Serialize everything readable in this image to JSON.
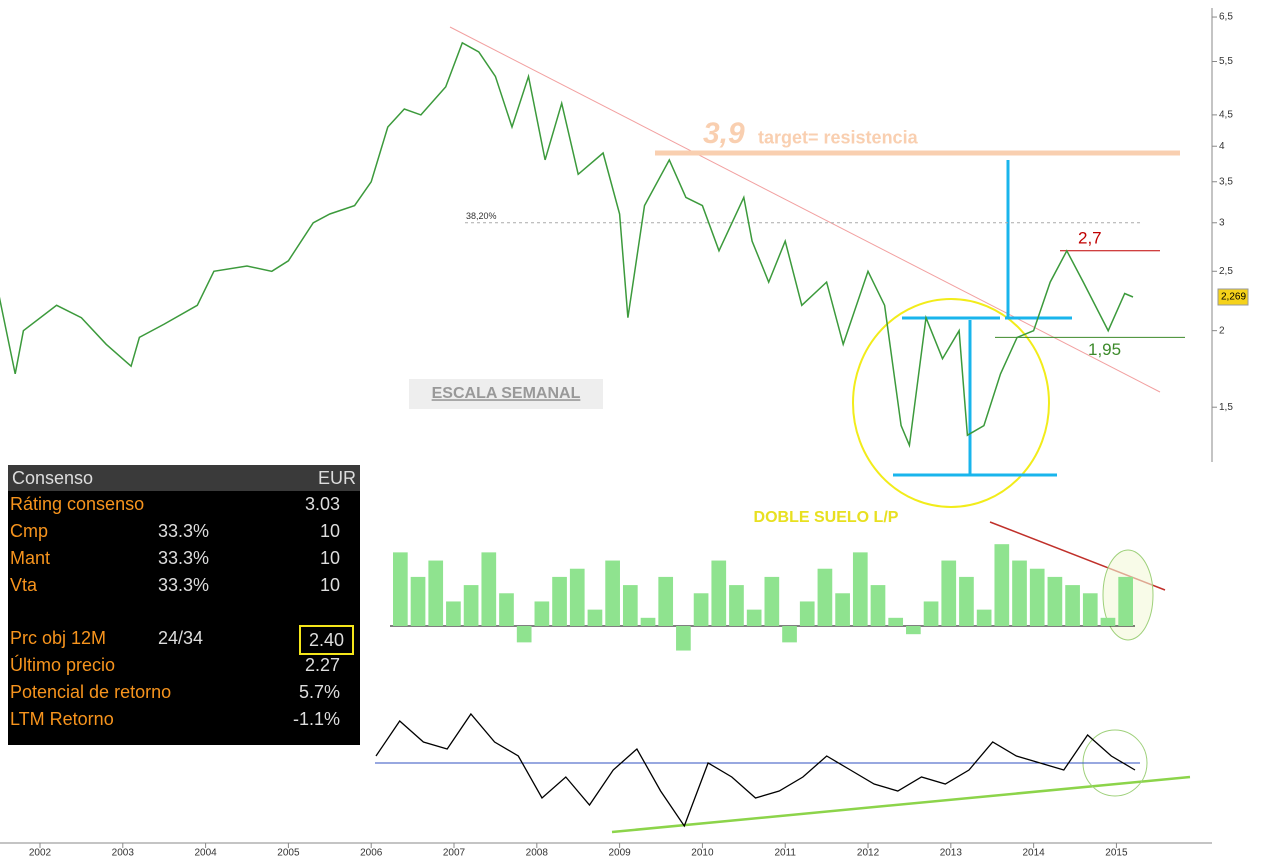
{
  "chart_data": {
    "type": "line",
    "series": [
      {
        "color": "#3c9a3c",
        "x": [
          2001.5,
          2001.7,
          2001.8,
          2002.2,
          2002.5,
          2002.8,
          2003.1,
          2003.2,
          2003.5,
          2003.9,
          2004.1,
          2004.5,
          2004.8,
          2005.0,
          2005.3,
          2005.5,
          2005.8,
          2006.0,
          2006.2,
          2006.4,
          2006.6,
          2006.9,
          2007.1,
          2007.3,
          2007.5,
          2007.7,
          2007.9,
          2008.1,
          2008.3,
          2008.5,
          2008.8,
          2009.0,
          2009.1,
          2009.3,
          2009.6,
          2009.8,
          2010.0,
          2010.2,
          2010.5,
          2010.6,
          2010.8,
          2011.0,
          2011.2,
          2011.5,
          2011.7,
          2012.0,
          2012.2,
          2012.4,
          2012.5,
          2012.7,
          2012.9,
          2013.1,
          2013.2,
          2013.4,
          2013.6,
          2013.8,
          2014.0,
          2014.2,
          2014.4,
          2014.6,
          2014.9,
          2015.1,
          2015.2
        ],
        "values": [
          2.3,
          1.7,
          2.0,
          2.2,
          2.1,
          1.9,
          1.75,
          1.95,
          2.05,
          2.2,
          2.5,
          2.55,
          2.5,
          2.6,
          3.0,
          3.1,
          3.2,
          3.5,
          4.3,
          4.6,
          4.5,
          5.0,
          5.9,
          5.7,
          5.2,
          4.3,
          5.2,
          3.8,
          4.7,
          3.6,
          3.9,
          3.1,
          2.1,
          3.2,
          3.8,
          3.3,
          3.2,
          2.7,
          3.3,
          2.8,
          2.4,
          2.8,
          2.2,
          2.4,
          1.9,
          2.5,
          2.2,
          1.4,
          1.3,
          2.1,
          1.8,
          2.0,
          1.35,
          1.4,
          1.7,
          1.95,
          2.0,
          2.4,
          2.7,
          2.4,
          2.0,
          2.3,
          2.27
        ]
      }
    ],
    "xlim": [
      2001.517,
      2016.13
    ],
    "xticks": [
      2002,
      2003,
      2004,
      2005,
      2006,
      2007,
      2008,
      2009,
      2010,
      2011,
      2012,
      2013,
      2014,
      2015
    ],
    "ylim": [
      1.23,
      6.93
    ],
    "log_scale": true,
    "yticks": [
      {
        "value": 1.5,
        "label": "1,5"
      },
      {
        "value": 2,
        "label": "2"
      },
      {
        "value": 2.5,
        "label": "2,5"
      },
      {
        "value": 3,
        "label": "3"
      },
      {
        "value": 3.5,
        "label": "3,5"
      },
      {
        "value": 4,
        "label": "4"
      },
      {
        "value": 4.5,
        "label": "4,5"
      },
      {
        "value": 5.5,
        "label": "5,5"
      },
      {
        "value": 6.5,
        "label": "6,5"
      }
    ],
    "last_price": {
      "value": 2.269,
      "label": "2,269"
    },
    "levels": [
      {
        "value": 3.9,
        "label": "3,9",
        "color": "#f9cfb0"
      },
      {
        "value": 2.7,
        "label": "2,7",
        "color": "#c00000"
      },
      {
        "value": 1.95,
        "label": "1,95",
        "color": "#3c8a2a"
      }
    ],
    "target_note": "target= resistencia",
    "fib": {
      "value": 3,
      "label": "38,20%"
    },
    "notes": [
      "ESCALA SEMANAL",
      "DOBLE SUELO L/P"
    ],
    "volume": {
      "values": [
        0.9,
        0.6,
        0.8,
        0.3,
        0.5,
        0.9,
        0.4,
        -0.2,
        0.3,
        0.6,
        0.7,
        0.2,
        0.8,
        0.5,
        0.1,
        0.6,
        -0.3,
        0.4,
        0.8,
        0.5,
        0.2,
        0.6,
        -0.2,
        0.3,
        0.7,
        0.4,
        0.9,
        0.5,
        0.1,
        -0.1,
        0.3,
        0.8,
        0.6,
        0.2,
        1.0,
        0.8,
        0.7,
        0.6,
        0.5,
        0.4,
        0.1,
        0.6
      ],
      "ylim": [
        -0.6,
        1.1
      ]
    },
    "oscillator": {
      "values": [
        0.1,
        0.6,
        0.3,
        0.2,
        0.7,
        0.3,
        0.1,
        -0.5,
        -0.2,
        -0.6,
        -0.1,
        0.2,
        -0.4,
        -0.9,
        0.0,
        -0.2,
        -0.5,
        -0.4,
        -0.2,
        0.1,
        -0.1,
        -0.3,
        -0.4,
        -0.2,
        -0.3,
        -0.1,
        0.3,
        0.1,
        0.0,
        -0.1,
        0.4,
        0.1,
        -0.1
      ],
      "ylim": [
        -1.0,
        0.9
      ]
    }
  },
  "consensus": {
    "header": [
      "Consenso",
      "EUR"
    ],
    "rows": [
      [
        "Ráting consenso",
        "3.03"
      ],
      [
        "Cmp",
        "33.3%",
        "10"
      ],
      [
        "Mant",
        "33.3%",
        "10"
      ],
      [
        "Vta",
        "33.3%",
        "10"
      ]
    ],
    "rows2": [
      [
        "Prc obj 12M",
        "24/34",
        "2.40"
      ],
      [
        "Último precio",
        "2.27"
      ],
      [
        "Potencial de retorno",
        "5.7%"
      ],
      [
        "LTM Retorno",
        "-1.1%"
      ]
    ]
  }
}
